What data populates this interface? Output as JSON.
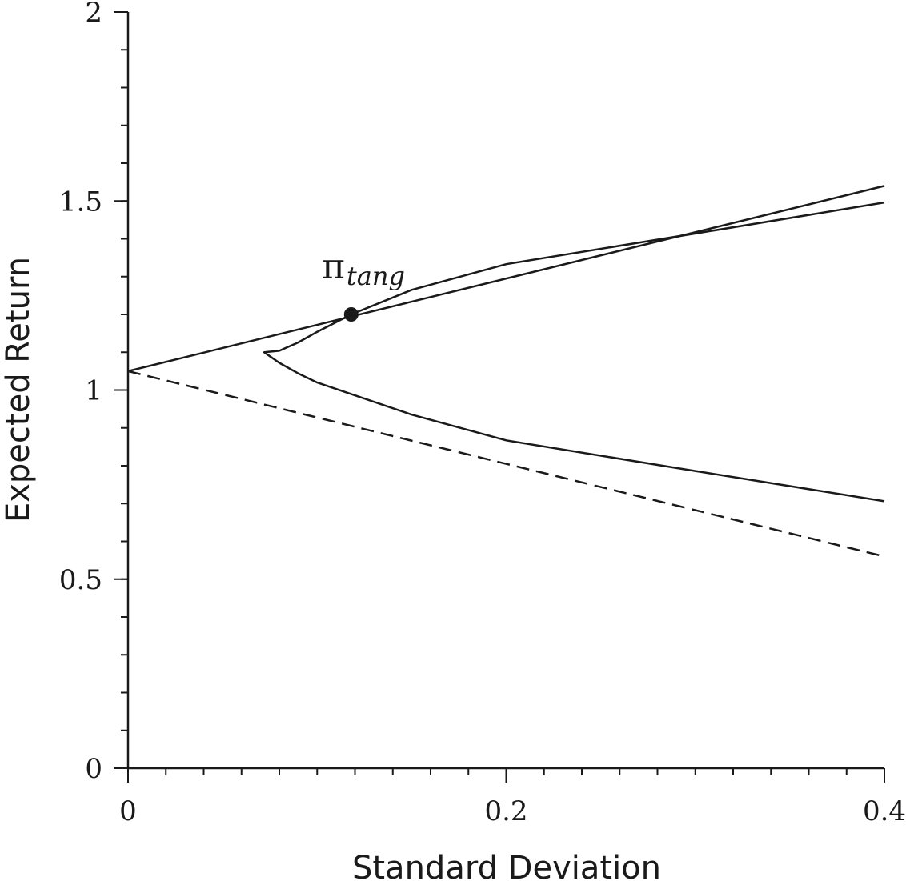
{
  "chart_data": {
    "type": "line",
    "title": "",
    "xlabel": "Standard Deviation",
    "ylabel": "Expected Return",
    "xlim": [
      0,
      0.4
    ],
    "ylim": [
      0,
      2
    ],
    "x_ticks": [
      0,
      0.2,
      0.4
    ],
    "x_tick_labels": [
      "0",
      "0.2",
      "0.4"
    ],
    "y_ticks": [
      0,
      0.5,
      1,
      1.5,
      2
    ],
    "y_tick_labels": [
      "0",
      "0.5",
      "1",
      "1.5",
      "2"
    ],
    "x_minor_step": 0.02,
    "y_minor_step": 0.1,
    "grid": false,
    "series": [
      {
        "style": "solid",
        "kind": "efficient-frontier-hyperbola",
        "points": [
          [
            0.4,
            1.496
          ],
          [
            0.3,
            1.414
          ],
          [
            0.2,
            1.333
          ],
          [
            0.15,
            1.265
          ],
          [
            0.118,
            1.2
          ],
          [
            0.1,
            1.154
          ],
          [
            0.09,
            1.126
          ],
          [
            0.08,
            1.104
          ],
          [
            0.072,
            1.1
          ],
          [
            0.08,
            1.072
          ],
          [
            0.09,
            1.044
          ],
          [
            0.1,
            1.02
          ],
          [
            0.15,
            0.935
          ],
          [
            0.2,
            0.867
          ],
          [
            0.3,
            0.786
          ],
          [
            0.4,
            0.706
          ]
        ]
      },
      {
        "style": "solid",
        "kind": "capital-market-line",
        "points": [
          [
            0,
            1.05
          ],
          [
            0.4,
            1.54
          ]
        ]
      },
      {
        "style": "dashed",
        "kind": "lower-line",
        "points": [
          [
            0,
            1.05
          ],
          [
            0.4,
            0.56
          ]
        ]
      }
    ],
    "annotations": [
      {
        "main": "π",
        "sub": "tang",
        "point": [
          0.118,
          1.2
        ]
      }
    ]
  }
}
